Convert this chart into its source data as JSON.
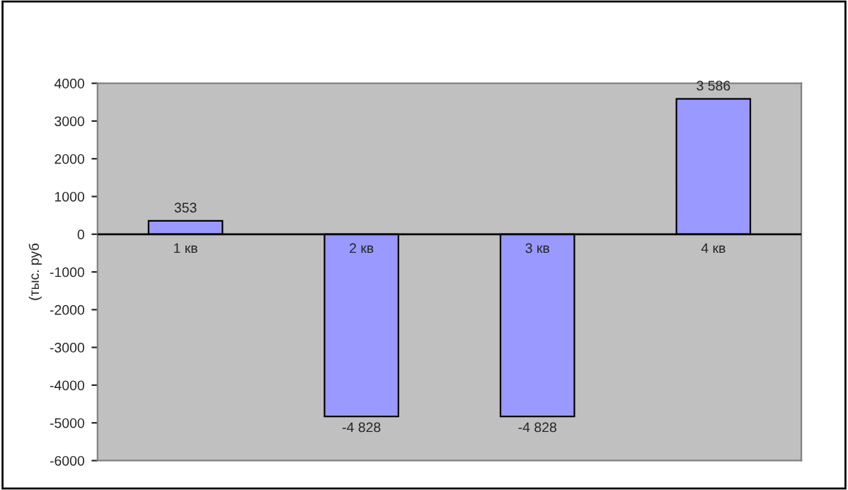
{
  "chart_data": {
    "type": "bar",
    "ylabel": "(тыс. руб",
    "categories": [
      "1 кв",
      "2 кв",
      "3 кв",
      "4 кв"
    ],
    "values": [
      353,
      -4828,
      -4828,
      3586
    ],
    "value_labels": [
      "353",
      "-4 828",
      "-4 828",
      "3 586"
    ],
    "color": "#9999ff",
    "ylim": [
      -6000,
      4000
    ],
    "yticks": [
      -6000,
      -5000,
      -4000,
      -3000,
      -2000,
      -1000,
      0,
      1000,
      2000,
      3000,
      4000
    ],
    "grid": false,
    "legend": false
  }
}
